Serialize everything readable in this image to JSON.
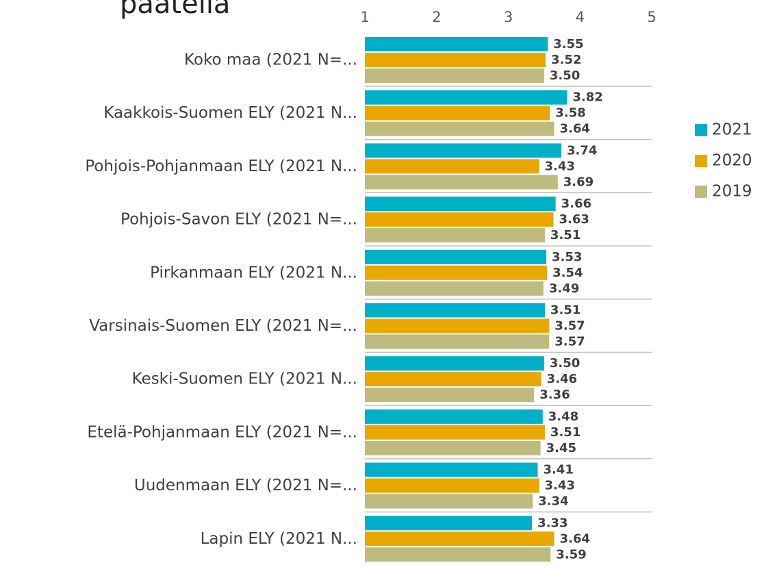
{
  "chart_data": {
    "type": "bar",
    "orientation": "horizontal",
    "title": "päätellä",
    "categories": [
      "Koko maa (2021 N=...",
      "Kaakkois-Suomen ELY (2021 N...",
      "Pohjois-Pohjanmaan ELY (2021 N...",
      "Pohjois-Savon ELY (2021 N=...",
      "Pirkanmaan ELY (2021 N...",
      "Varsinais-Suomen ELY (2021 N=...",
      "Keski-Suomen ELY (2021 N...",
      "Etelä-Pohjanmaan ELY (2021 N=...",
      "Uudenmaan ELY (2021 N=...",
      "Lapin ELY (2021 N..."
    ],
    "series": [
      {
        "name": "2021",
        "color": "#00b0c8",
        "values": [
          3.55,
          3.82,
          3.74,
          3.66,
          3.53,
          3.51,
          3.5,
          3.48,
          3.41,
          3.33
        ],
        "value_labels": [
          "3.55",
          "3.82",
          "3.74",
          "3.66",
          "3.53",
          "3.51",
          "3.50",
          "3.48",
          "3.41",
          "3.33"
        ]
      },
      {
        "name": "2020",
        "color": "#e8a800",
        "values": [
          3.52,
          3.58,
          3.43,
          3.63,
          3.54,
          3.57,
          3.46,
          3.51,
          3.43,
          3.64
        ],
        "value_labels": [
          "3.52",
          "3.58",
          "3.43",
          "3.63",
          "3.54",
          "3.57",
          "3.46",
          "3.51",
          "3.43",
          "3.64"
        ]
      },
      {
        "name": "2019",
        "color": "#bfbb7f",
        "values": [
          3.5,
          3.64,
          3.69,
          3.51,
          3.49,
          3.57,
          3.36,
          3.45,
          3.34,
          3.59
        ],
        "value_labels": [
          "3.50",
          "3.64",
          "3.69",
          "3.51",
          "3.49",
          "3.57",
          "3.36",
          "3.45",
          "3.34",
          "3.59"
        ]
      }
    ],
    "xlim": [
      1,
      5
    ],
    "xticks": [
      1,
      2,
      3,
      4,
      5
    ],
    "legend": "right"
  }
}
